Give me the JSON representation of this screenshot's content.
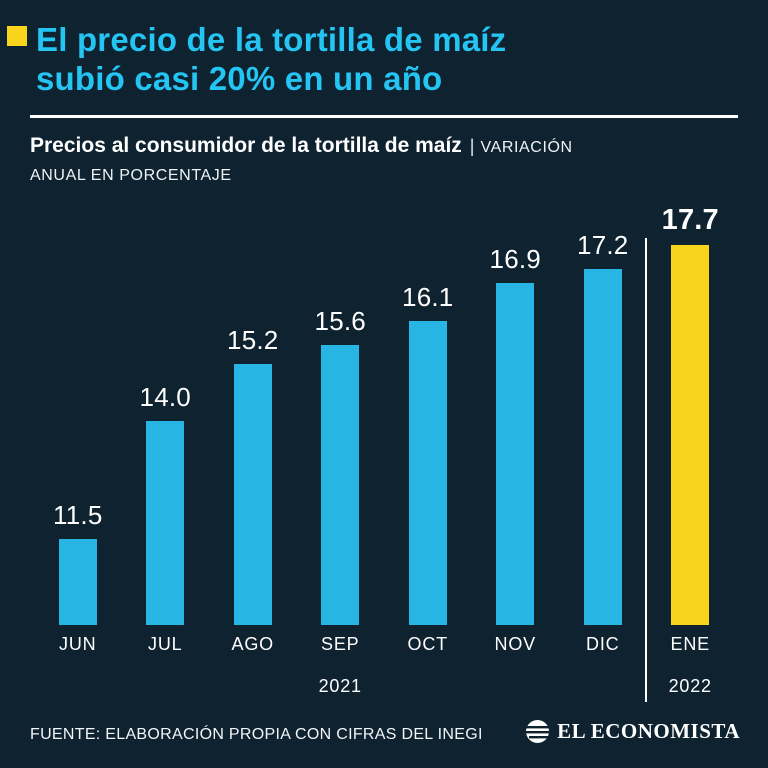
{
  "colors": {
    "background": "#0e2230",
    "title_cyan": "#24c4f3",
    "bar_cyan": "#27b6e4",
    "highlight_yellow": "#f8d41d",
    "text_white": "#ffffff"
  },
  "header": {
    "title_line1": "El precio de la tortilla de maíz",
    "title_line2": "subió casi 20% en un año"
  },
  "subtitle": {
    "bold_text": "Precios al consumidor de la tortilla de maíz",
    "pipe": "|",
    "caps_line1": "VARIACIÓN",
    "caps_line2": "ANUAL EN PORCENTAJE"
  },
  "chart_data": {
    "type": "bar",
    "title": "Precios al consumidor de la tortilla de maíz | VARIACIÓN ANUAL EN PORCENTAJE",
    "xlabel": "",
    "ylabel": "VARIACIÓN ANUAL EN PORCENTAJE",
    "categories": [
      "JUN",
      "JUL",
      "AGO",
      "SEP",
      "OCT",
      "NOV",
      "DIC",
      "ENE"
    ],
    "values": [
      11.5,
      14.0,
      15.2,
      15.6,
      16.1,
      16.9,
      17.2,
      17.7
    ],
    "value_labels": [
      "11.5",
      "14.0",
      "15.2",
      "15.6",
      "16.1",
      "16.9",
      "17.2",
      "17.7"
    ],
    "highlight_index": 7,
    "highlight_category": "ENE",
    "year_labels": [
      "",
      "",
      "",
      "2021",
      "",
      "",
      "",
      "2022"
    ],
    "divider_after_index": 6,
    "ylim": [
      9.7,
      17.7
    ],
    "grid": false,
    "legend": false,
    "value_labels_shown": true
  },
  "footer": {
    "source": "FUENTE: ELABORACIÓN PROPIA CON CIFRAS DEL INEGI",
    "brand": "EL ECONOMISTA"
  }
}
